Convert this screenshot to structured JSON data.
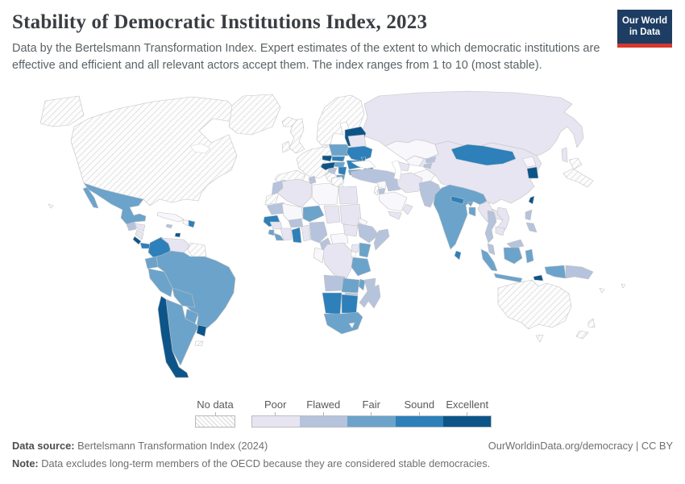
{
  "header": {
    "title": "Stability of Democratic Institutions Index, 2023",
    "subtitle": "Data by the Bertelsmann Transformation Index. Expert estimates of the extent to which democratic institutions are effective and efficient and all relevant actors accept them. The index ranges from 1 to 10 (most stable).",
    "logo": {
      "line1": "Our World",
      "line2": "in Data",
      "bg_color": "#1d3d63",
      "accent_color": "#d7382e"
    }
  },
  "legend": {
    "no_data_label": "No data",
    "categories": [
      "Poor",
      "Flawed",
      "Fair",
      "Sound",
      "Excellent"
    ]
  },
  "footer": {
    "source_label": "Data source:",
    "source_value": " Bertelsmann Transformation Index (2024)",
    "credit": "OurWorldinData.org/democracy | CC BY",
    "note_label": "Note:",
    "note_value": " Data excludes long-term members of the OECD because they are considered stable democracies."
  },
  "chart_data": {
    "type": "choropleth",
    "title": "Stability of Democratic Institutions Index, 2023",
    "year": 2023,
    "index_range": [
      1,
      10
    ],
    "legend_position": "bottom",
    "palette": {
      "No data": "hatch",
      "Poor (lowest)": "#f8f7fb",
      "Poor": "#e7e5f1",
      "Flawed": "#b6c3dc",
      "Fair": "#6ba3cb",
      "Sound": "#2d80ba",
      "Excellent": "#0d5589"
    },
    "countries": {
      "Canada and United States": "No data",
      "Greenland": "No data",
      "Iceland": "No data",
      "United Kingdom": "No data",
      "Ireland": "No data",
      "Norway, Sweden and Finland": "No data",
      "Denmark": "No data",
      "France, Germany and Western Europe": "No data",
      "Spain and Portugal": "No data",
      "Italy": "No data",
      "Greece": "No data",
      "Israel": "No data",
      "Japan": "No data",
      "Australia": "No data",
      "New Zealand": "No data",
      "Guyana, Suriname and French Guiana": "No data",
      "Western Sahara": "No data",
      "Falkland Islands": "No data",
      "Cuba": "Poor (lowest)",
      "Haiti": "Poor (lowest)",
      "Kazakhstan": "Poor (lowest)",
      "Uzbekistan": "Poor (lowest)",
      "Afghanistan": "Poor (lowest)",
      "Syria": "Poor (lowest)",
      "Saudi Arabia": "Poor (lowest)",
      "Libya": "Poor (lowest)",
      "Mali": "Poor (lowest)",
      "Central African Republic": "Poor (lowest)",
      "Congo and Gabon": "Poor (lowest)",
      "Eritrea": "Poor (lowest)",
      "Lesotho": "Poor (lowest)",
      "North Korea": "Poor (lowest)",
      "Russia": "Poor",
      "Belarus": "Poor",
      "China": "Poor",
      "Vietnam": "Poor",
      "Laos": "Poor",
      "Cambodia": "Poor",
      "Myanmar": "Poor",
      "Iran": "Poor",
      "Yemen": "Poor",
      "Oman": "Poor",
      "Turkmenistan": "Poor",
      "Azerbaijan": "Poor",
      "Egypt": "Poor",
      "Algeria": "Poor",
      "Chad": "Poor",
      "Sudan": "Poor",
      "South Sudan": "Poor",
      "Democratic Republic of Congo": "Poor",
      "Uganda": "Poor",
      "Guinea": "Poor",
      "Togo and Benin": "Poor",
      "Ivory Coast": "Poor",
      "Venezuela": "Poor",
      "Honduras": "Poor",
      "Nicaragua": "Poor",
      "Turkey": "Flawed",
      "Iraq": "Flawed",
      "Jordan": "Flawed",
      "Pakistan": "Flawed",
      "Kyrgyzstan": "Flawed",
      "Tajikistan": "Flawed",
      "Thailand": "Flawed",
      "Philippines": "Flawed",
      "Malaysia": "Flawed",
      "Papua New Guinea": "Flawed",
      "Morocco": "Flawed",
      "Tunisia": "Flawed",
      "Mauritania": "Flawed",
      "Burkina Faso": "Flawed",
      "Nigeria": "Flawed",
      "Cameroon": "Flawed",
      "Ethiopia": "Flawed",
      "Somalia": "Flawed",
      "Angola": "Flawed",
      "Mozambique": "Flawed",
      "Zimbabwe": "Flawed",
      "Madagascar": "Flawed",
      "Guatemala": "Flawed",
      "Bosnia and Herzegovina": "Flawed",
      "Jamaica": "Flawed",
      "Mexico": "Fair",
      "Ecuador": "Fair",
      "Peru": "Fair",
      "Brazil": "Fair",
      "Bolivia": "Fair",
      "Paraguay": "Fair",
      "Argentina": "Fair",
      "India": "Fair",
      "Bhutan": "Fair",
      "Bangladesh": "Fair",
      "Indonesia": "Fair",
      "South Africa": "Fair",
      "Kenya": "Fair",
      "Tanzania": "Fair",
      "Zambia": "Fair",
      "Malawi": "Fair",
      "Niger": "Fair",
      "Liberia": "Fair",
      "Sierra Leone": "Fair",
      "Hungary": "Fair",
      "Bulgaria": "Fair",
      "Albania and North Macedonia": "Fair",
      "Armenia": "Fair",
      "Poland": "Fair",
      "Colombia": "Sound",
      "Dominican Republic": "Sound",
      "Panama": "Sound",
      "Ghana": "Sound",
      "Senegal": "Sound",
      "Namibia": "Sound",
      "Botswana": "Sound",
      "Ukraine": "Sound",
      "Romania": "Sound",
      "Moldova": "Sound",
      "Serbia": "Sound",
      "Georgia": "Sound",
      "Mongolia": "Sound",
      "Nepal": "Sound",
      "Sri Lanka": "Sound",
      "Slovakia": "Sound",
      "Chile": "Excellent",
      "Uruguay": "Excellent",
      "Costa Rica": "Excellent",
      "Estonia, Latvia and Lithuania": "Excellent",
      "Czechia": "Excellent",
      "Croatia and Slovenia": "Excellent",
      "Taiwan": "Excellent",
      "South Korea": "Excellent",
      "Timor-Leste": "Excellent",
      "Trinidad and Tobago": "Excellent"
    }
  }
}
